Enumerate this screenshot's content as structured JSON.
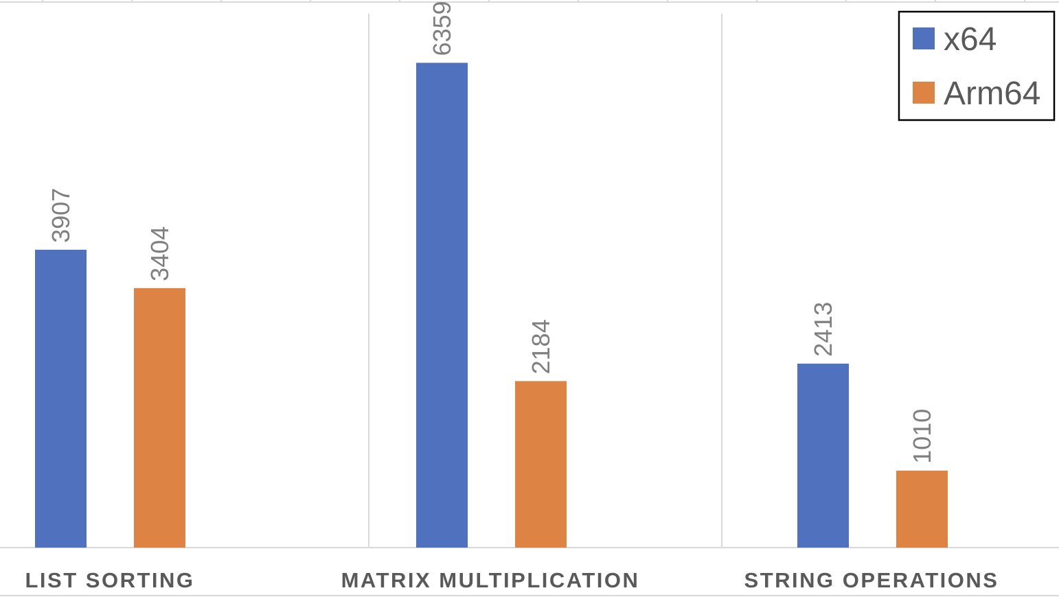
{
  "chart_data": {
    "type": "bar",
    "title": "",
    "xlabel": "",
    "ylabel": "",
    "categories": [
      "LIST SORTING",
      "MATRIX MULTIPLICATION",
      "STRING OPERATIONS"
    ],
    "series": [
      {
        "name": "x64",
        "color": "#4f71be",
        "values": [
          3907,
          6359,
          2413
        ]
      },
      {
        "name": "Arm64",
        "color": "#dd8344",
        "values": [
          3404,
          2184,
          1010
        ]
      }
    ],
    "ylim": [
      0,
      7200
    ],
    "data_labels": true,
    "data_label_orientation": "vertical",
    "grid": "category-separators",
    "legend": {
      "position": "top-right",
      "entries": [
        "x64",
        "Arm64"
      ]
    }
  }
}
